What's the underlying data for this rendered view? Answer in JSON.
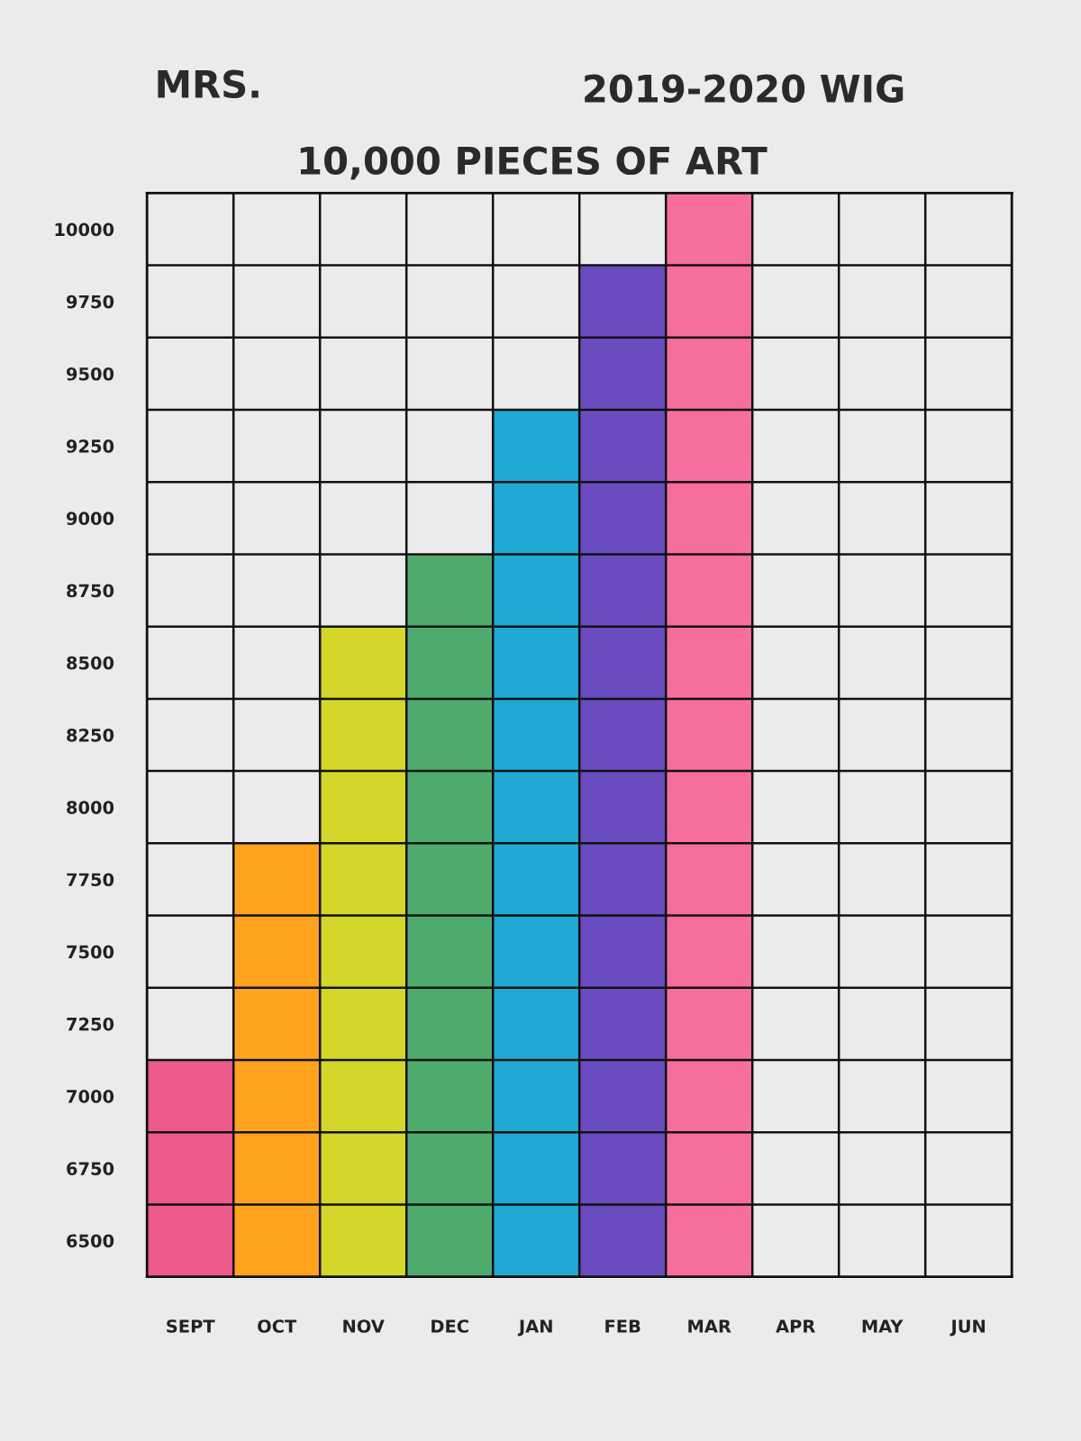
{
  "chart_data": {
    "type": "bar",
    "title": "10,000 PIECES OF ART",
    "annotations": [
      "MRS.",
      "2019-2020 WIG"
    ],
    "categories": [
      "SEPT",
      "OCT",
      "NOV",
      "DEC",
      "JAN",
      "FEB",
      "MAR",
      "APR",
      "MAY",
      "JUN"
    ],
    "values": [
      7125,
      7875,
      8625,
      8875,
      9375,
      9875,
      10125,
      null,
      null,
      null
    ],
    "colors": [
      "#ee5a8a",
      "#ffa31f",
      "#d4d62a",
      "#4faa6e",
      "#1fa8d4",
      "#6a4cc0",
      "#f56e9e",
      "#cccccc",
      "#cccccc",
      "#cccccc"
    ],
    "ylim": [
      6375,
      10125
    ],
    "yticks": [
      6500,
      6750,
      7000,
      7250,
      7500,
      7750,
      8000,
      8250,
      8500,
      8750,
      9000,
      9250,
      9500,
      9750,
      10000
    ],
    "grid": true
  }
}
